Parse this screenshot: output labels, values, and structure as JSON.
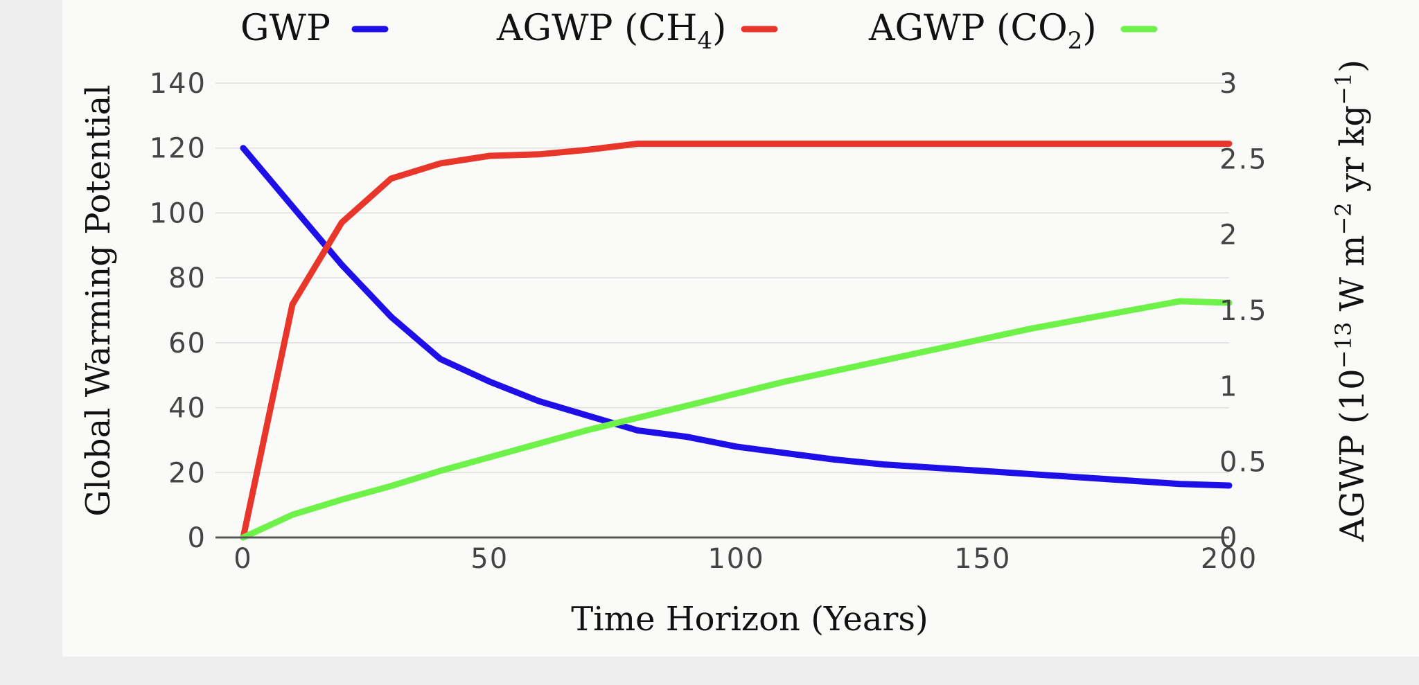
{
  "chart_data": {
    "type": "line",
    "title": "",
    "xlabel": "Time Horizon (Years)",
    "ylabel_left": "Global Warming Potential",
    "ylabel_right": "AGWP (10−13 W m−2 yr kg−1)",
    "ylabel_right_parts": {
      "prefix": "AGWP (10",
      "exp1": "−13",
      "middle": " W m",
      "exp2": "−2",
      "middle2": " yr kg",
      "exp3": "−1",
      "suffix": ")"
    },
    "xlim": [
      0,
      200
    ],
    "ylim_left": [
      0,
      140
    ],
    "ylim_right": [
      0,
      3
    ],
    "xticks": [
      0,
      50,
      100,
      150,
      200
    ],
    "xtick_labels": [
      "0",
      "50",
      "100",
      "150",
      "200"
    ],
    "yticks_left": [
      0,
      20,
      40,
      60,
      80,
      100,
      120,
      140
    ],
    "ytick_labels_left": [
      "0",
      "20",
      "40",
      "60",
      "80",
      "100",
      "120",
      "140"
    ],
    "yticks_right": [
      0,
      0.5,
      1,
      1.5,
      2,
      2.5,
      3
    ],
    "ytick_labels_right": [
      "0",
      "0.5",
      "1",
      "1.5",
      "2",
      "2.5",
      "3"
    ],
    "grid": true,
    "legend_position": "top",
    "series": [
      {
        "name": "GWP",
        "label_parts": [
          "GWP",
          "",
          ""
        ],
        "axis": "left",
        "color": "#1e0fe8",
        "x": [
          0,
          10,
          20,
          30,
          40,
          50,
          60,
          70,
          80,
          90,
          100,
          110,
          120,
          130,
          140,
          150,
          160,
          170,
          180,
          190,
          200
        ],
        "values": [
          120,
          102,
          84,
          68,
          55,
          48,
          42,
          37.5,
          33,
          31,
          28,
          26,
          24,
          22.5,
          21.5,
          20.5,
          19.5,
          18.5,
          17.5,
          16.5,
          16
        ]
      },
      {
        "name": "AGWP (CH4)",
        "label_parts": [
          "AGWP (CH",
          "4",
          ")"
        ],
        "axis": "right",
        "color": "#e8362a",
        "x": [
          0,
          10,
          20,
          30,
          40,
          50,
          60,
          70,
          80,
          90,
          100,
          110,
          120,
          130,
          140,
          150,
          160,
          170,
          180,
          190,
          200
        ],
        "values": [
          0,
          1.54,
          2.08,
          2.37,
          2.47,
          2.52,
          2.53,
          2.56,
          2.6,
          2.6,
          2.6,
          2.6,
          2.6,
          2.6,
          2.6,
          2.6,
          2.6,
          2.6,
          2.6,
          2.6,
          2.6
        ]
      },
      {
        "name": "AGWP (CO2)",
        "label_parts": [
          "AGWP (CO",
          "2",
          ")"
        ],
        "axis": "right",
        "color": "#6ef24a",
        "x": [
          0,
          10,
          20,
          30,
          40,
          50,
          60,
          70,
          80,
          90,
          100,
          110,
          120,
          130,
          140,
          150,
          160,
          170,
          180,
          190,
          200
        ],
        "values": [
          0,
          0.15,
          0.25,
          0.34,
          0.44,
          0.53,
          0.62,
          0.71,
          0.79,
          0.87,
          0.95,
          1.03,
          1.1,
          1.17,
          1.24,
          1.31,
          1.38,
          1.44,
          1.5,
          1.56,
          1.55
        ]
      }
    ]
  }
}
